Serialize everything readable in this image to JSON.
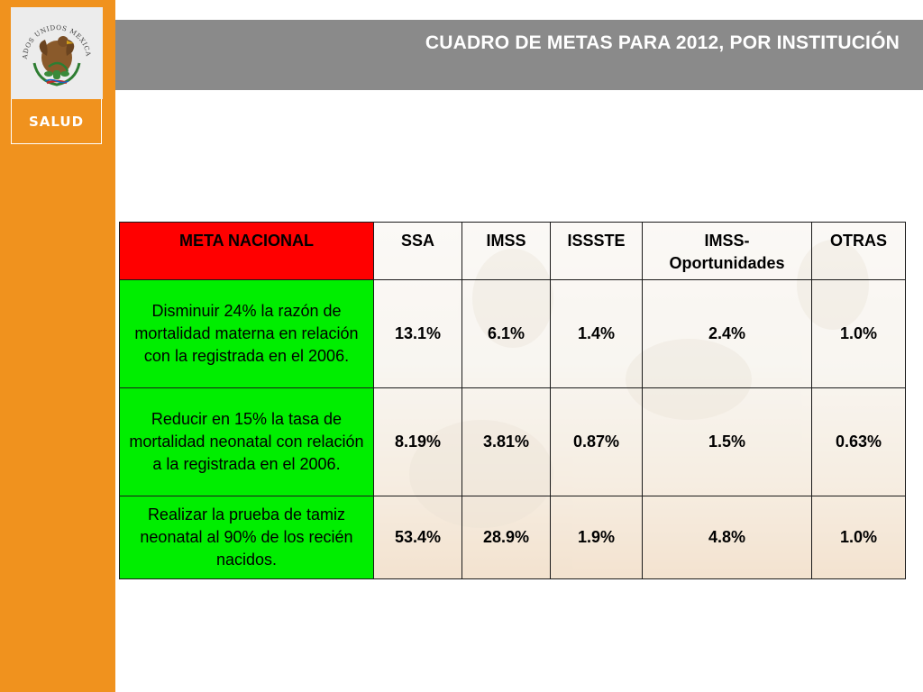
{
  "header": {
    "title": "CUADRO DE METAS PARA 2012, POR INSTITUCIÓN"
  },
  "sidebar": {
    "emblem_icon": "mexican-coat-of-arms-icon",
    "emblem_text": "ESTADOS UNIDOS MEXICANOS",
    "label": "SALUD"
  },
  "colors": {
    "sidebar": "#f0921e",
    "header_bar": "#8a8a8a",
    "meta_header": "#ff0000",
    "meta_cells": "#00ee00"
  },
  "table": {
    "headers": [
      "META NACIONAL",
      "SSA",
      "IMSS",
      "ISSSTE",
      "IMSS-Oportunidades",
      "OTRAS"
    ],
    "rows": [
      {
        "meta": "Disminuir 24% la razón de mortalidad materna en relación con la registrada en el 2006.",
        "values": [
          "13.1%",
          "6.1%",
          "1.4%",
          "2.4%",
          "1.0%"
        ]
      },
      {
        "meta": "Reducir en 15% la tasa de mortalidad neonatal con relación a la registrada en el 2006.",
        "values": [
          "8.19%",
          "3.81%",
          "0.87%",
          "1.5%",
          "0.63%"
        ]
      },
      {
        "meta": "Realizar la prueba de tamiz neonatal al 90% de los recién nacidos.",
        "values": [
          "53.4%",
          "28.9%",
          "1.9%",
          "4.8%",
          "1.0%"
        ]
      }
    ]
  }
}
